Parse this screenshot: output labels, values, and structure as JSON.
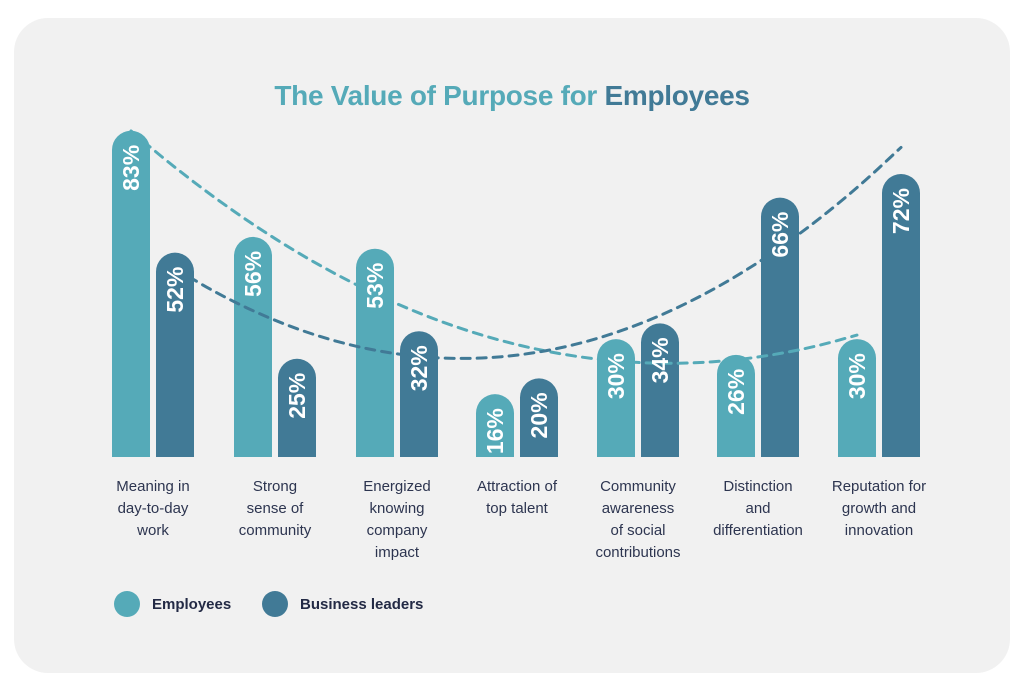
{
  "title": {
    "part1": "The Value of Purpose for",
    "part2": "Employees"
  },
  "colors": {
    "employees": "#55aab8",
    "business_leaders": "#417a96",
    "background": "#f1f1f1",
    "label_text": "#2d3550"
  },
  "legend": [
    {
      "label": "Employees",
      "color": "#55aab8"
    },
    {
      "label": "Business leaders",
      "color": "#417a96"
    }
  ],
  "chart_data": {
    "type": "bar",
    "title": "The Value of Purpose for Employees",
    "categories": [
      "Meaning in day-to-day work",
      "Strong sense of community",
      "Energized knowing company impact",
      "Attraction of top talent",
      "Community awareness of social contributions",
      "Distinction and differentiation",
      "Reputation for growth and innovation"
    ],
    "series": [
      {
        "name": "Employees",
        "values": [
          83,
          56,
          53,
          16,
          30,
          26,
          30
        ],
        "labels": [
          "83%",
          "56%",
          "53%",
          "16%",
          "30%",
          "26%",
          "30%"
        ]
      },
      {
        "name": "Business leaders",
        "values": [
          52,
          25,
          32,
          20,
          34,
          66,
          72
        ],
        "labels": [
          "52%",
          "25%",
          "32%",
          "20%",
          "34%",
          "66%",
          "72%"
        ]
      }
    ],
    "trendlines": "dashed curves per series",
    "legend_position": "bottom-left",
    "grid": false
  },
  "category_lines": [
    [
      "Meaning in",
      "day-to-day",
      "work"
    ],
    [
      "Strong",
      "sense of",
      "community"
    ],
    [
      "Energized",
      "knowing",
      "company",
      "impact"
    ],
    [
      "Attraction of",
      "top talent"
    ],
    [
      "Community",
      "awareness",
      "of social",
      "contributions"
    ],
    [
      "Distinction",
      "and",
      "differentiation"
    ],
    [
      "Reputation for",
      "growth and",
      "innovation"
    ]
  ]
}
